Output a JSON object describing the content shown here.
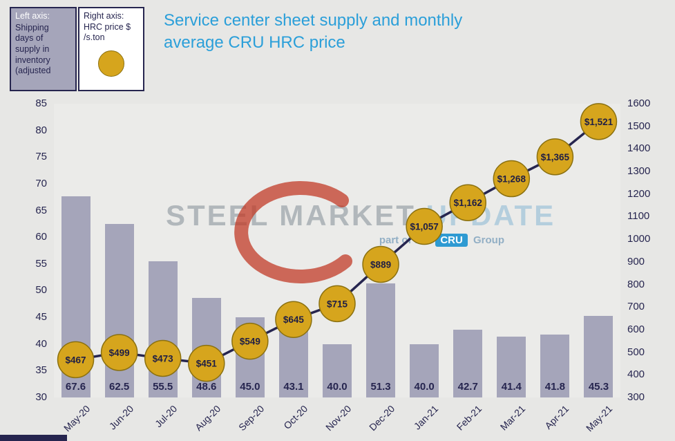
{
  "header": {
    "title_line1": "Service center sheet supply and monthly",
    "title_line2": "average CRU HRC price"
  },
  "legend": {
    "left_box": {
      "heading": "Left axis:",
      "lines": [
        "Shipping",
        "days of",
        "supply in",
        "inventory",
        "(adjusted"
      ]
    },
    "right_box": {
      "heading": "Right axis:",
      "line1": "HRC price $",
      "line2": "/s.ton",
      "marker": "gold-circle"
    }
  },
  "watermark": {
    "word1": "STEEL",
    "word2": "MARKET",
    "word3": "UPDATE",
    "tagline_pre": "part of the",
    "tagline_box": "CRU",
    "tagline_post": "Group"
  },
  "colors": {
    "title": "#2b9fd9",
    "bar": "#a5a5ba",
    "line": "#26254f",
    "marker_fill": "#d6a51d",
    "marker_stroke": "#8a7010",
    "axis_text": "#26254f",
    "background": "#e7e7e5",
    "watermark_red": "#c23b27"
  },
  "chart_data": {
    "type": "bar",
    "subtype": "combo bar + line, dual axis",
    "title": "Service center sheet supply and monthly average CRU HRC price",
    "categories": [
      "May-20",
      "Jun-20",
      "Jul-20",
      "Aug-20",
      "Sep-20",
      "Oct-20",
      "Nov-20",
      "Dec-20",
      "Jan-21",
      "Feb-21",
      "Mar-21",
      "Apr-21",
      "May-21"
    ],
    "series": [
      {
        "name": "Shipping days of supply in inventory (adjusted)",
        "type": "bar",
        "axis": "left",
        "values": [
          67.6,
          62.5,
          55.5,
          48.6,
          45.0,
          43.1,
          40.0,
          51.3,
          40.0,
          42.7,
          41.4,
          41.8,
          45.3
        ],
        "labels": [
          "67.6",
          "62.5",
          "55.5",
          "48.6",
          "45.0",
          "43.1",
          "40.0",
          "51.3",
          "40.0",
          "42.7",
          "41.4",
          "41.8",
          "45.3"
        ]
      },
      {
        "name": "HRC price $/s.ton",
        "type": "line",
        "axis": "right",
        "values": [
          467,
          499,
          473,
          451,
          549,
          645,
          715,
          889,
          1057,
          1162,
          1268,
          1365,
          1521
        ],
        "labels": [
          "$467",
          "$499",
          "$473",
          "$451",
          "$549",
          "$645",
          "$715",
          "$889",
          "$1,057",
          "$1,162",
          "$1,268",
          "$1,365",
          "$1,521"
        ]
      }
    ],
    "left_axis": {
      "min": 30,
      "max": 85,
      "step": 5,
      "ticks": [
        85,
        80,
        75,
        70,
        65,
        60,
        55,
        50,
        45,
        40,
        35,
        30
      ]
    },
    "right_axis": {
      "min": 300,
      "max": 1600,
      "step": 100,
      "ticks": [
        1600,
        1500,
        1400,
        1300,
        1200,
        1100,
        1000,
        900,
        800,
        700,
        600,
        500,
        400,
        300
      ]
    },
    "grid": false,
    "legend_position": "top-left"
  }
}
